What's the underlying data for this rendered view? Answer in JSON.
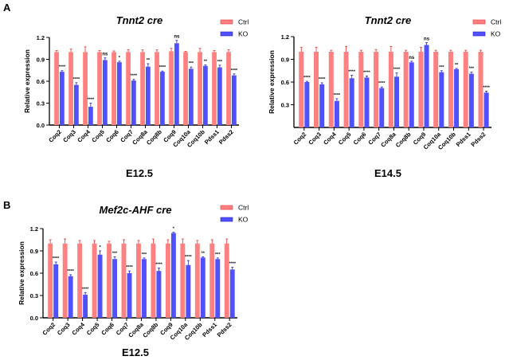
{
  "panels": {
    "A": "A",
    "B": "B"
  },
  "colors": {
    "ctrl_fill": "#FF8080",
    "ctrl_err": "#E83030",
    "ko_fill": "#5050FF",
    "ko_err": "#2020D0",
    "axis": "#000000"
  },
  "chart_data": [
    {
      "id": "A1",
      "type": "bar",
      "title": "Tnnt2 cre",
      "subtitle": "E12.5",
      "xlabel": "",
      "ylabel": "Relative expression",
      "ylim": [
        0,
        1.2
      ],
      "yticks": [
        "0.0",
        "0.3",
        "0.6",
        "0.9",
        "1.2"
      ],
      "ytick_values": [
        0,
        0.3,
        0.6,
        0.9,
        1.2
      ],
      "legend": {
        "position": "top-right",
        "entries": [
          "Ctrl",
          "KO"
        ]
      },
      "categories": [
        "Coq2",
        "Coq3",
        "Coq4",
        "Coq5",
        "Coq6",
        "Coq7",
        "Coq8a",
        "Coq8b",
        "Coq9",
        "Coq10a",
        "Coq10b",
        "Pdss1",
        "Pdss2"
      ],
      "series": [
        {
          "name": "Ctrl",
          "values": [
            1.0,
            1.0,
            1.0,
            1.0,
            1.0,
            1.0,
            1.0,
            1.0,
            1.01,
            1.0,
            1.0,
            1.0,
            1.0
          ],
          "errors": [
            0.02,
            0.04,
            0.07,
            0.02,
            0.015,
            0.03,
            0.03,
            0.03,
            0.04,
            0.01,
            0.05,
            0.02,
            0.03
          ]
        },
        {
          "name": "KO",
          "values": [
            0.73,
            0.55,
            0.25,
            0.89,
            0.86,
            0.61,
            0.8,
            0.73,
            1.12,
            0.77,
            0.81,
            0.79,
            0.68
          ],
          "errors": [
            0.015,
            0.03,
            0.05,
            0.03,
            0.015,
            0.015,
            0.04,
            0.01,
            0.04,
            0.025,
            0.015,
            0.03,
            0.02
          ]
        }
      ],
      "significance": [
        "****",
        "****",
        "****",
        "ns",
        "*",
        "****",
        "**",
        "****",
        "ns",
        "***",
        "**",
        "***",
        "****"
      ]
    },
    {
      "id": "A2",
      "type": "bar",
      "title": "Tnnt2 cre",
      "subtitle": "E14.5",
      "xlabel": "",
      "ylabel": "Relative expression",
      "ylim": [
        0,
        1.2
      ],
      "yticks": [
        "0.3",
        "0.6",
        "0.9",
        "1.2"
      ],
      "ytick_values": [
        0.3,
        0.6,
        0.9,
        1.2
      ],
      "legend": {
        "position": "top-right",
        "entries": [
          "Ctrl",
          "KO"
        ]
      },
      "categories": [
        "Coq2",
        "Coq3",
        "Coq4",
        "Coq5",
        "Coq6",
        "Coq7",
        "Coq8a",
        "Coq8b",
        "Coq9",
        "Coq10a",
        "Coq10b",
        "Pdss1",
        "Pdss2"
      ],
      "series": [
        {
          "name": "Ctrl",
          "values": [
            1.0,
            1.0,
            1.0,
            1.0,
            1.0,
            1.0,
            1.0,
            1.0,
            1.0,
            1.0,
            1.0,
            1.0,
            1.0
          ],
          "errors": [
            0.06,
            0.06,
            0.02,
            0.07,
            0.02,
            0.03,
            0.07,
            0.02,
            0.06,
            0.02,
            0.02,
            0.02,
            0.02
          ]
        },
        {
          "name": "KO",
          "values": [
            0.6,
            0.57,
            0.35,
            0.65,
            0.66,
            0.52,
            0.67,
            0.86,
            1.09,
            0.73,
            0.77,
            0.71,
            0.46
          ],
          "errors": [
            0.01,
            0.02,
            0.03,
            0.04,
            0.02,
            0.015,
            0.05,
            0.015,
            0.03,
            0.02,
            0.01,
            0.02,
            0.02
          ]
        }
      ],
      "significance": [
        "****",
        "****",
        "****",
        "****",
        "****",
        "****",
        "****",
        "ns",
        "ns",
        "***",
        "**",
        "***",
        "****"
      ]
    },
    {
      "id": "B",
      "type": "bar",
      "title": "Mef2c-AHF cre",
      "subtitle": "E12.5",
      "xlabel": "",
      "ylabel": "Relative expression",
      "ylim": [
        0,
        1.2
      ],
      "yticks": [
        "0.0",
        "0.3",
        "0.6",
        "0.9",
        "1.2"
      ],
      "ytick_values": [
        0,
        0.3,
        0.6,
        0.9,
        1.2
      ],
      "legend": {
        "position": "top-right",
        "entries": [
          "Ctrl",
          "KO"
        ]
      },
      "categories": [
        "Coq2",
        "Coq3",
        "Coq4",
        "Coq5",
        "Coq6",
        "Coq7",
        "Coq8a",
        "Coq8b",
        "Coq9",
        "Coq10a",
        "Coq10b",
        "Pdss1",
        "Pdss2"
      ],
      "series": [
        {
          "name": "Ctrl",
          "values": [
            1.0,
            1.0,
            1.0,
            1.0,
            1.0,
            1.0,
            1.0,
            1.0,
            1.0,
            1.0,
            1.0,
            1.0,
            1.0
          ],
          "errors": [
            0.05,
            0.06,
            0.04,
            0.04,
            0.03,
            0.05,
            0.04,
            0.06,
            0.05,
            0.06,
            0.04,
            0.05,
            0.06
          ]
        },
        {
          "name": "KO",
          "values": [
            0.72,
            0.56,
            0.31,
            0.85,
            0.79,
            0.6,
            0.79,
            0.63,
            1.14,
            0.71,
            0.81,
            0.79,
            0.65
          ],
          "errors": [
            0.03,
            0.02,
            0.03,
            0.05,
            0.03,
            0.03,
            0.015,
            0.04,
            0.01,
            0.06,
            0.01,
            0.015,
            0.03
          ]
        }
      ],
      "significance": [
        "****",
        "****",
        "****",
        "*",
        "***",
        "****",
        "***",
        "****",
        "*",
        "****",
        "**",
        "***",
        "****"
      ]
    }
  ]
}
